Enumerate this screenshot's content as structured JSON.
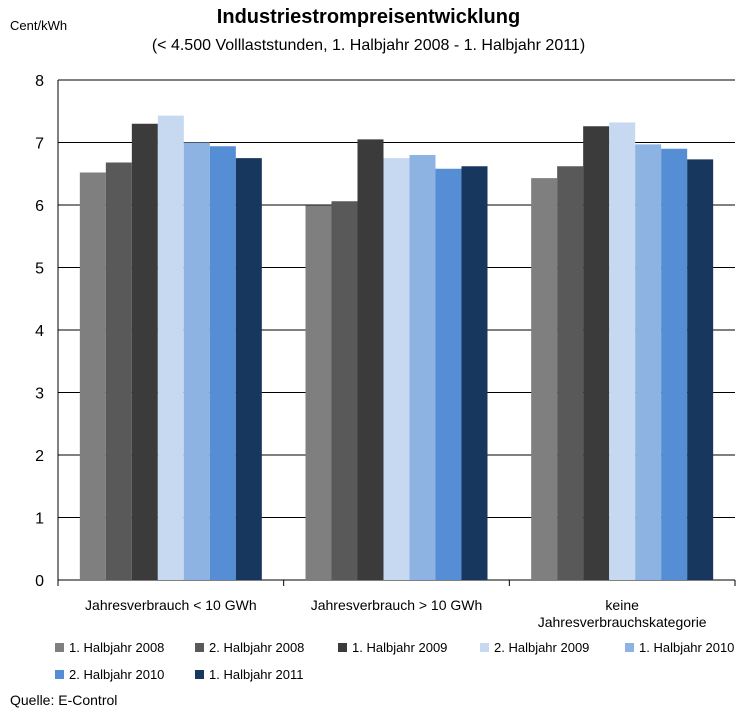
{
  "chart_data": {
    "type": "bar",
    "title": "Industriestrompreisentwicklung",
    "subtitle": "(< 4.500 Volllaststunden, 1. Halbjahr 2008 - 1. Halbjahr 2011)",
    "ylabel": "Cent/kWh",
    "ylim": [
      0,
      8
    ],
    "yticks": [
      "0",
      "1",
      "2",
      "3",
      "4",
      "5",
      "6",
      "7",
      "8"
    ],
    "grid": "horizontal",
    "legend_position": "bottom",
    "categories": [
      [
        "Jahresverbrauch < 10 GWh"
      ],
      [
        "Jahresverbrauch > 10 GWh"
      ],
      [
        "keine",
        "Jahresverbrauchskategorie"
      ]
    ],
    "series": [
      {
        "name": "1. Halbjahr 2008",
        "color": "#7f7f7f",
        "values": [
          6.52,
          5.99,
          6.43
        ]
      },
      {
        "name": "2. Halbjahr 2008",
        "color": "#595959",
        "values": [
          6.68,
          6.06,
          6.62
        ]
      },
      {
        "name": "1. Halbjahr 2009",
        "color": "#3b3b3b",
        "values": [
          7.3,
          7.05,
          7.26
        ]
      },
      {
        "name": "2. Halbjahr 2009",
        "color": "#c6d9f1",
        "values": [
          7.43,
          6.75,
          7.32
        ]
      },
      {
        "name": "1. Halbjahr 2010",
        "color": "#8db3e2",
        "values": [
          7.0,
          6.8,
          6.97
        ]
      },
      {
        "name": "2. Halbjahr 2010",
        "color": "#558ed5",
        "values": [
          6.94,
          6.58,
          6.9
        ]
      },
      {
        "name": "1. Halbjahr 2011",
        "color": "#17375e",
        "values": [
          6.75,
          6.62,
          6.73
        ]
      }
    ]
  },
  "source": "Quelle: E-Control"
}
